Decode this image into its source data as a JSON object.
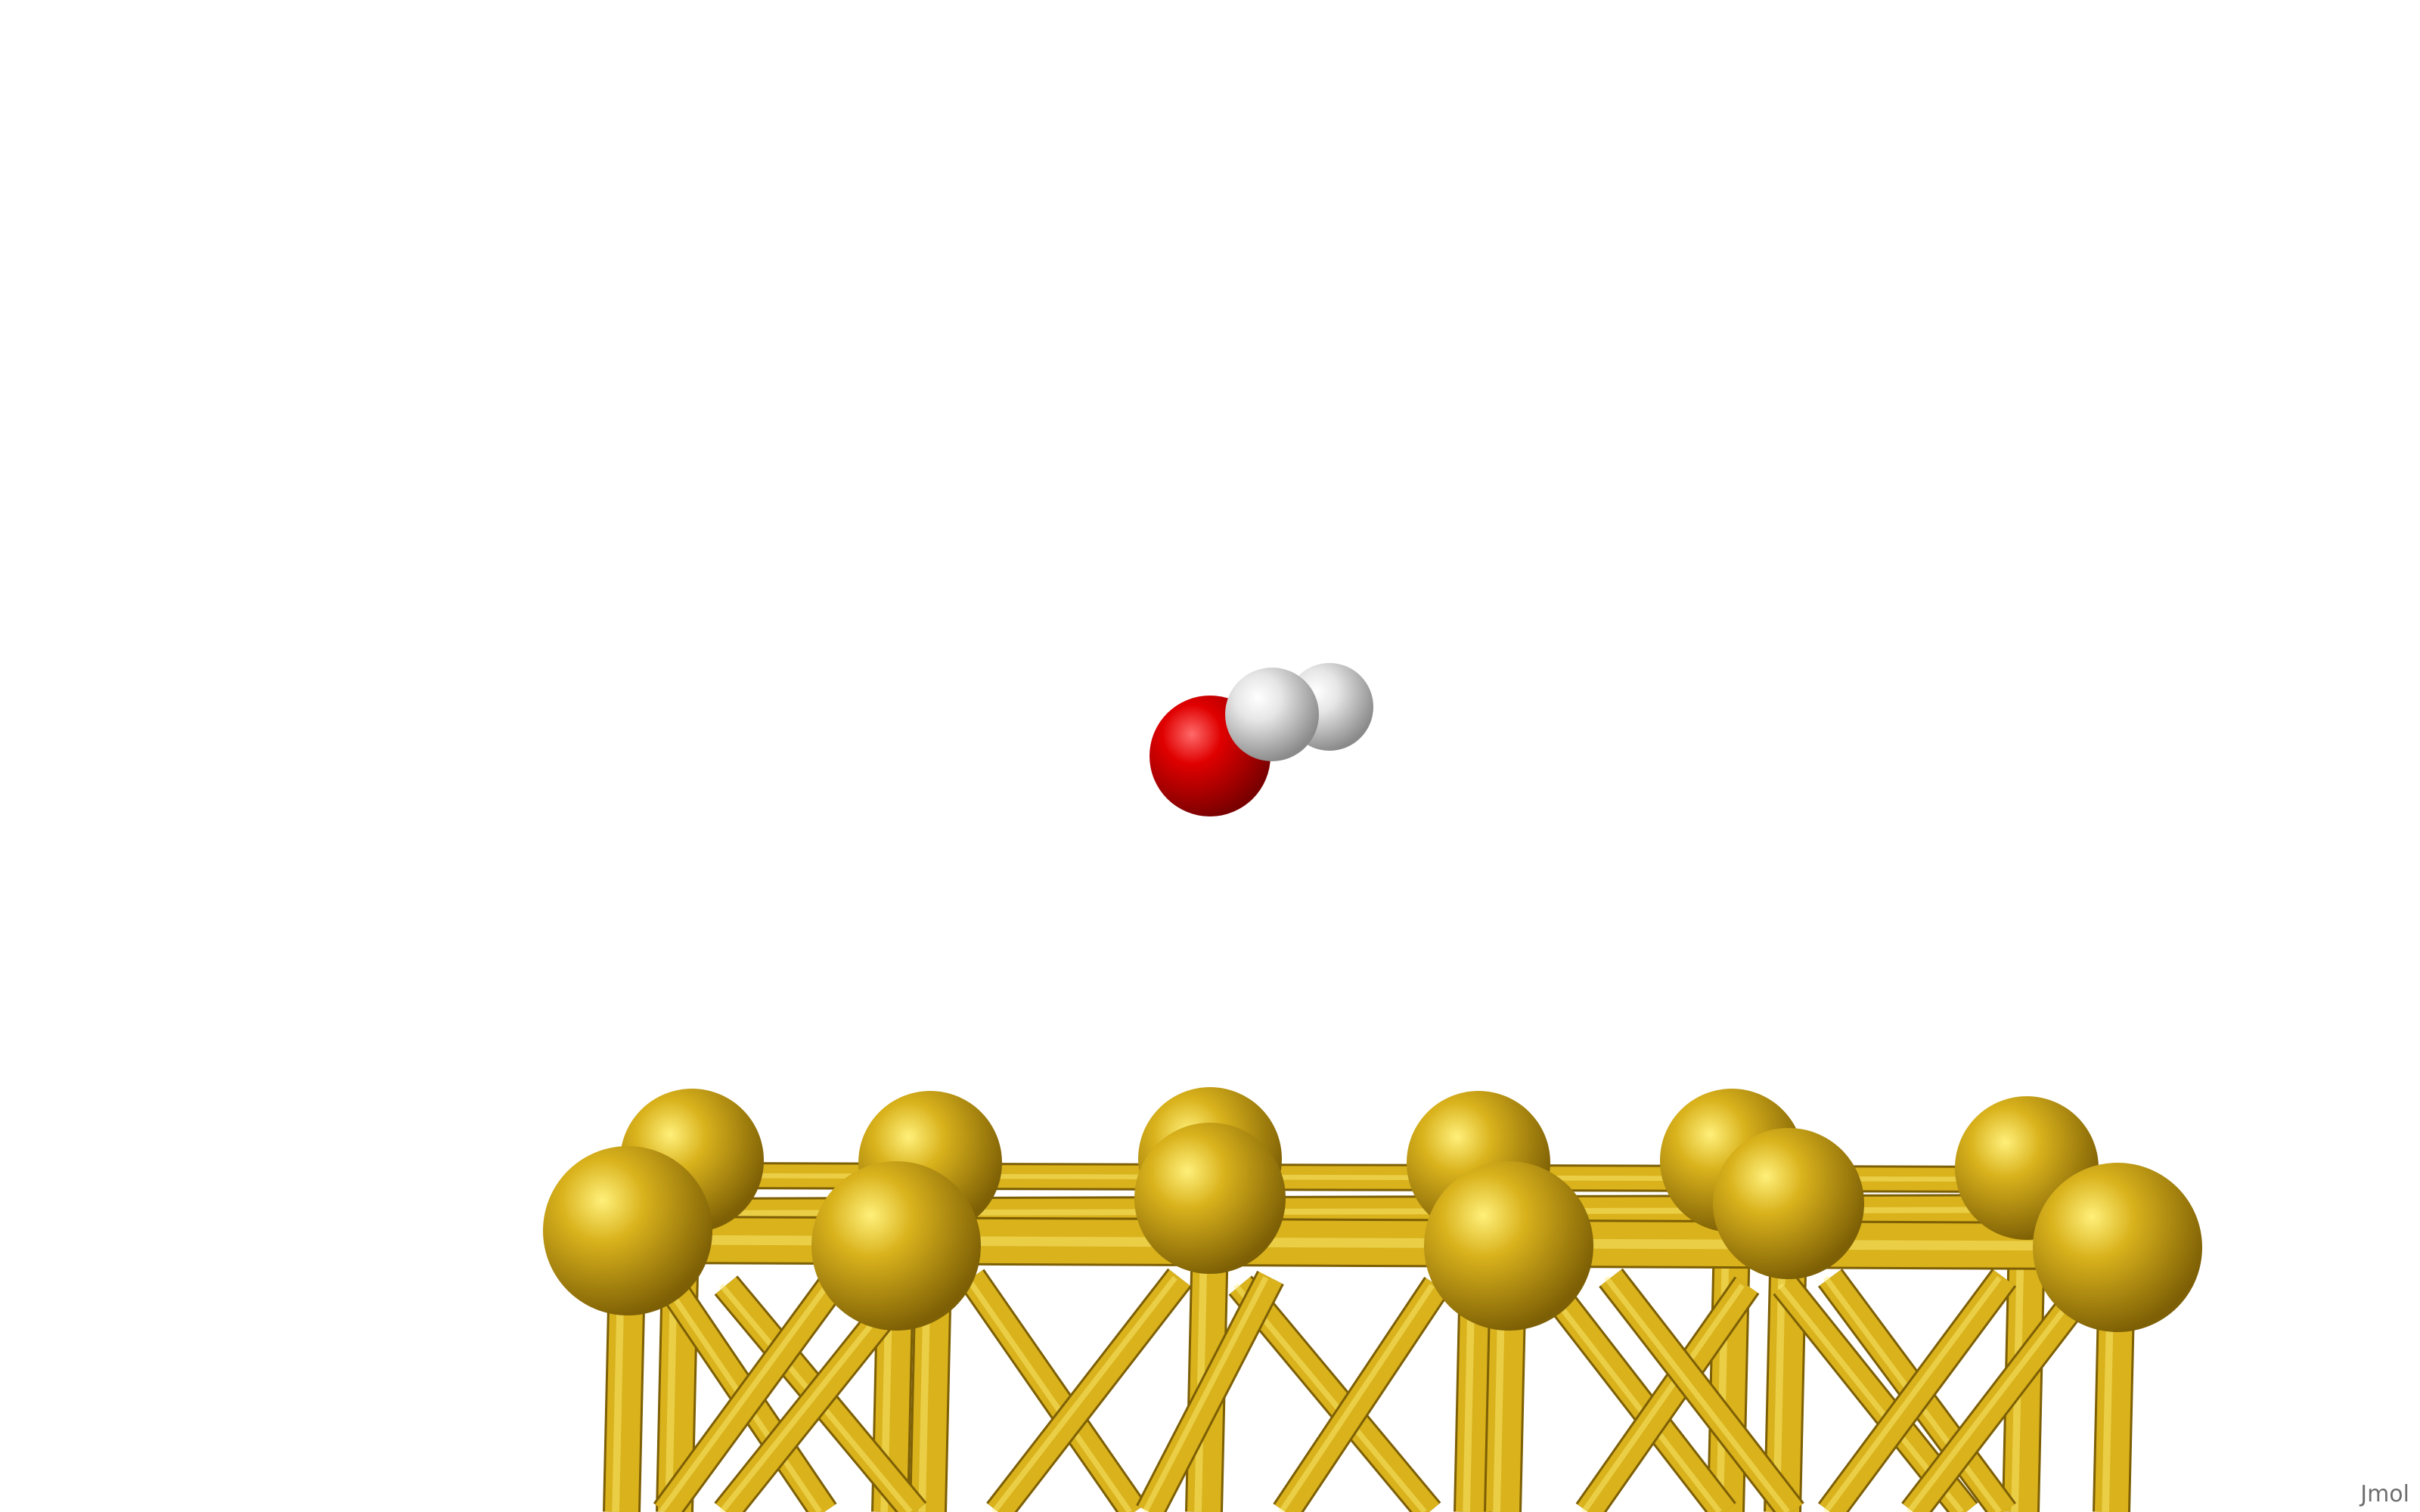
{
  "viewer": {
    "watermark": "Jmol",
    "background": "#ffffff"
  },
  "molecule": {
    "atoms": [
      {
        "element": "O",
        "color": "#e00000",
        "highlight": "#ff6a6a",
        "shadow": "#7a0000"
      },
      {
        "element": "H",
        "color": "#e6e6e6",
        "highlight": "#ffffff",
        "shadow": "#8a8a8a"
      },
      {
        "element": "H",
        "color": "#e6e6e6",
        "highlight": "#ffffff",
        "shadow": "#8a8a8a"
      }
    ]
  },
  "surface": {
    "element": "Au",
    "color": "#d9b21c",
    "highlight": "#fff07a",
    "shadow": "#7d5f05"
  }
}
